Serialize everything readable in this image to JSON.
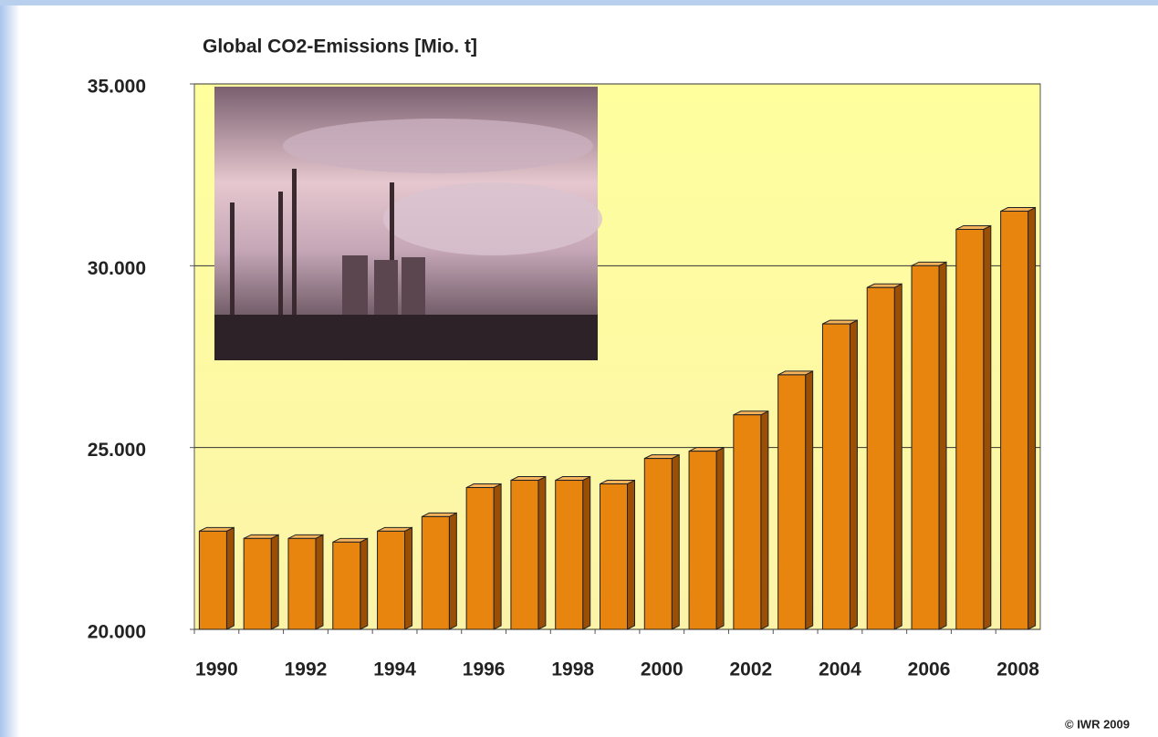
{
  "chart_data": {
    "type": "bar3d",
    "title": "Global CO2-Emissions [Mio. t]",
    "categories": [
      "1990",
      null,
      "1992",
      null,
      "1994",
      null,
      "1996",
      null,
      "1998",
      null,
      "2000",
      null,
      "2002",
      null,
      "2004",
      null,
      "2006",
      null,
      "2008"
    ],
    "values": [
      22700,
      22500,
      22500,
      22400,
      22700,
      23100,
      23900,
      24100,
      24100,
      24000,
      24700,
      24900,
      25900,
      27000,
      28400,
      29400,
      30000,
      31000,
      31500
    ],
    "color": "#e8850f",
    "ylim": [
      20000,
      35000
    ],
    "yticks": [
      {
        "value": 20000,
        "label": "20.000"
      },
      {
        "value": 25000,
        "label": "25.000"
      },
      {
        "value": 30000,
        "label": "30.000"
      },
      {
        "value": 35000,
        "label": "35.000"
      }
    ],
    "grid": true,
    "source": "© IWR 2009"
  }
}
